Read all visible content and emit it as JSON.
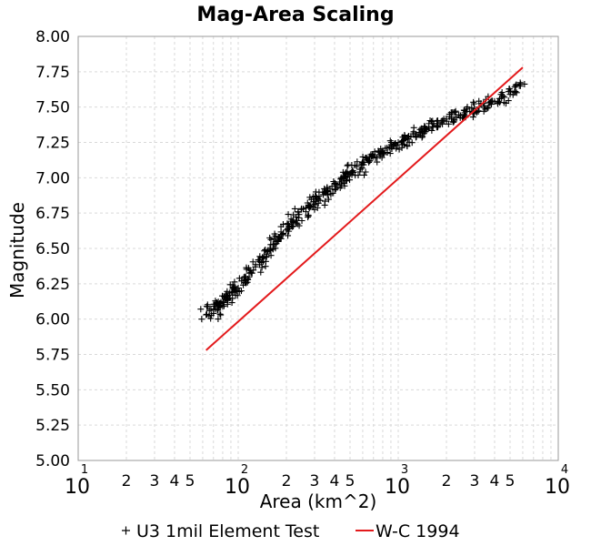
{
  "chart_data": {
    "type": "scatter",
    "title": "Mag-Area Scaling",
    "xlabel": "Area (km^2)",
    "ylabel": "Magnitude",
    "x_scale": "log",
    "xlim": [
      10,
      10000
    ],
    "ylim": [
      5.0,
      8.0
    ],
    "grid": true,
    "legend_placement": "bottom",
    "x_ticks": [
      {
        "base": "10",
        "exp": "1"
      },
      {
        "base": "10",
        "exp": "2"
      },
      {
        "base": "10",
        "exp": "3"
      },
      {
        "base": "10",
        "exp": "4"
      }
    ],
    "x_minor_ticks": [
      "2",
      "3",
      "4",
      "5"
    ],
    "y_ticks": [
      "5.00",
      "5.25",
      "5.50",
      "5.75",
      "6.00",
      "6.25",
      "6.50",
      "6.75",
      "7.00",
      "7.25",
      "7.50",
      "7.75",
      "8.00"
    ],
    "series": [
      {
        "name": "U3 1mil Element Test",
        "marker": "+",
        "color": "#000000",
        "x": [
          63,
          66,
          70,
          72,
          75,
          78,
          80,
          83,
          86,
          88,
          92,
          95,
          100,
          105,
          110,
          115,
          120,
          128,
          135,
          140,
          150,
          158,
          165,
          172,
          180,
          190,
          200,
          210,
          220,
          230,
          240,
          255,
          265,
          280,
          295,
          310,
          325,
          340,
          360,
          375,
          390,
          410,
          430,
          450,
          470,
          500,
          520,
          550,
          580,
          610,
          640,
          680,
          720,
          760,
          800,
          850,
          900,
          950,
          1000,
          1060,
          1120,
          1200,
          1280,
          1350,
          1450,
          1550,
          1650,
          1750,
          1850,
          2000,
          2150,
          2300,
          2450,
          2600,
          2800,
          3000,
          3200,
          3450,
          3700,
          4000,
          4300,
          4600,
          5000,
          5400,
          5800
        ],
        "y": [
          6.03,
          6.06,
          6.04,
          6.07,
          6.1,
          6.12,
          6.09,
          6.14,
          6.16,
          6.15,
          6.19,
          6.21,
          6.22,
          6.27,
          6.3,
          6.28,
          6.33,
          6.37,
          6.42,
          6.4,
          6.46,
          6.5,
          6.53,
          6.55,
          6.58,
          6.6,
          6.63,
          6.65,
          6.7,
          6.68,
          6.74,
          6.78,
          6.76,
          6.8,
          6.83,
          6.86,
          6.84,
          6.88,
          6.9,
          6.92,
          6.89,
          6.95,
          6.97,
          7.0,
          6.98,
          7.03,
          7.05,
          7.08,
          7.06,
          7.11,
          7.13,
          7.15,
          7.14,
          7.18,
          7.19,
          7.21,
          7.22,
          7.24,
          7.25,
          7.26,
          7.28,
          7.29,
          7.31,
          7.32,
          7.33,
          7.35,
          7.36,
          7.37,
          7.39,
          7.4,
          7.42,
          7.43,
          7.44,
          7.46,
          7.47,
          7.49,
          7.5,
          7.51,
          7.53,
          7.54,
          7.56,
          7.57,
          7.59,
          7.61,
          7.65
        ]
      },
      {
        "name": "W-C 1994",
        "marker": "line",
        "color": "#e31a1c",
        "x": [
          63,
          6000
        ],
        "y": [
          5.78,
          7.78
        ]
      }
    ]
  }
}
